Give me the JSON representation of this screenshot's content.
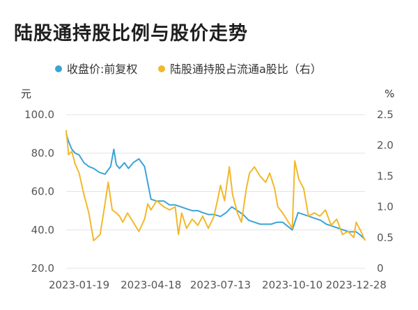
{
  "chart_data": {
    "type": "line",
    "title": "陆股通持股比例与股价走势",
    "left_unit": "元",
    "right_unit": "%",
    "x_ticks": [
      "2023-01-19",
      "2023-04-18",
      "2023-07-13",
      "2023-10-10",
      "2023-12-28"
    ],
    "left_ylim": [
      20,
      100
    ],
    "left_ticks": [
      "100.0",
      "80.0",
      "60.0",
      "40.0",
      "20.0"
    ],
    "left_tick_values": [
      100,
      80,
      60,
      40,
      20
    ],
    "right_ylim": [
      0,
      2.5
    ],
    "right_ticks": [
      "2.5",
      "2.0",
      "1.5",
      "1.0",
      "0.5",
      "0"
    ],
    "right_tick_values": [
      2.5,
      2.0,
      1.5,
      1.0,
      0.5,
      0
    ],
    "legend_position": "top",
    "grid": true,
    "series": [
      {
        "name": "收盘价:前复权",
        "axis": "left",
        "color": "#3aa3d8",
        "x": [
          "2023-01-03",
          "2023-01-06",
          "2023-01-10",
          "2023-01-14",
          "2023-01-19",
          "2023-01-25",
          "2023-01-31",
          "2023-02-06",
          "2023-02-13",
          "2023-02-20",
          "2023-02-27",
          "2023-03-03",
          "2023-03-06",
          "2023-03-10",
          "2023-03-16",
          "2023-03-21",
          "2023-03-27",
          "2023-04-03",
          "2023-04-10",
          "2023-04-18",
          "2023-04-25",
          "2023-05-04",
          "2023-05-11",
          "2023-05-18",
          "2023-05-25",
          "2023-06-01",
          "2023-06-08",
          "2023-06-15",
          "2023-06-21",
          "2023-06-28",
          "2023-07-05",
          "2023-07-13",
          "2023-07-20",
          "2023-07-27",
          "2023-08-03",
          "2023-08-10",
          "2023-08-17",
          "2023-08-24",
          "2023-08-31",
          "2023-09-07",
          "2023-09-14",
          "2023-09-21",
          "2023-09-28",
          "2023-10-10",
          "2023-10-17",
          "2023-10-24",
          "2023-10-31",
          "2023-11-07",
          "2023-11-14",
          "2023-11-21",
          "2023-11-28",
          "2023-12-05",
          "2023-12-12",
          "2023-12-19",
          "2023-12-28",
          "2024-01-03",
          "2024-01-08"
        ],
        "values": [
          90,
          86,
          82,
          80,
          79,
          75,
          73,
          72,
          70,
          69,
          73,
          82,
          74,
          72,
          75,
          72,
          75,
          77,
          73,
          56,
          55,
          55,
          53,
          53,
          52,
          51,
          50,
          50,
          49,
          48,
          48,
          47,
          49,
          52,
          50,
          48,
          45,
          44,
          43,
          43,
          43,
          44,
          44,
          40,
          49,
          48,
          47,
          46,
          45,
          43,
          42,
          41,
          40,
          39,
          39,
          37,
          35
        ]
      },
      {
        "name": "陆股通持股占流通a股比（右）",
        "axis": "right",
        "color": "#f2b82a",
        "x": [
          "2023-01-03",
          "2023-01-06",
          "2023-01-10",
          "2023-01-14",
          "2023-01-19",
          "2023-01-25",
          "2023-01-31",
          "2023-02-06",
          "2023-02-10",
          "2023-02-14",
          "2023-02-20",
          "2023-02-24",
          "2023-03-01",
          "2023-03-06",
          "2023-03-10",
          "2023-03-14",
          "2023-03-20",
          "2023-03-27",
          "2023-04-03",
          "2023-04-10",
          "2023-04-14",
          "2023-04-18",
          "2023-04-25",
          "2023-05-04",
          "2023-05-11",
          "2023-05-18",
          "2023-05-22",
          "2023-05-26",
          "2023-06-01",
          "2023-06-08",
          "2023-06-15",
          "2023-06-21",
          "2023-06-28",
          "2023-07-05",
          "2023-07-10",
          "2023-07-13",
          "2023-07-18",
          "2023-07-24",
          "2023-07-28",
          "2023-08-03",
          "2023-08-08",
          "2023-08-14",
          "2023-08-18",
          "2023-08-24",
          "2023-08-31",
          "2023-09-07",
          "2023-09-12",
          "2023-09-18",
          "2023-09-22",
          "2023-09-28",
          "2023-10-10",
          "2023-10-13",
          "2023-10-18",
          "2023-10-24",
          "2023-10-30",
          "2023-11-06",
          "2023-11-13",
          "2023-11-20",
          "2023-11-27",
          "2023-12-04",
          "2023-12-11",
          "2023-12-18",
          "2023-12-25",
          "2023-12-28",
          "2024-01-03",
          "2024-01-08"
        ],
        "values": [
          2.25,
          1.85,
          1.9,
          1.7,
          1.55,
          1.2,
          0.9,
          0.45,
          0.5,
          0.55,
          1.05,
          1.4,
          0.95,
          0.9,
          0.85,
          0.75,
          0.9,
          0.75,
          0.6,
          0.8,
          1.05,
          0.95,
          1.1,
          1.0,
          0.95,
          1.0,
          0.55,
          0.9,
          0.65,
          0.8,
          0.7,
          0.85,
          0.65,
          0.85,
          1.15,
          1.35,
          1.1,
          1.65,
          1.2,
          0.9,
          0.75,
          1.3,
          1.55,
          1.65,
          1.5,
          1.4,
          1.55,
          1.3,
          1.0,
          0.9,
          0.65,
          1.75,
          1.45,
          1.3,
          0.85,
          0.9,
          0.85,
          0.95,
          0.7,
          0.8,
          0.55,
          0.6,
          0.5,
          0.75,
          0.6,
          0.45
        ]
      }
    ]
  }
}
